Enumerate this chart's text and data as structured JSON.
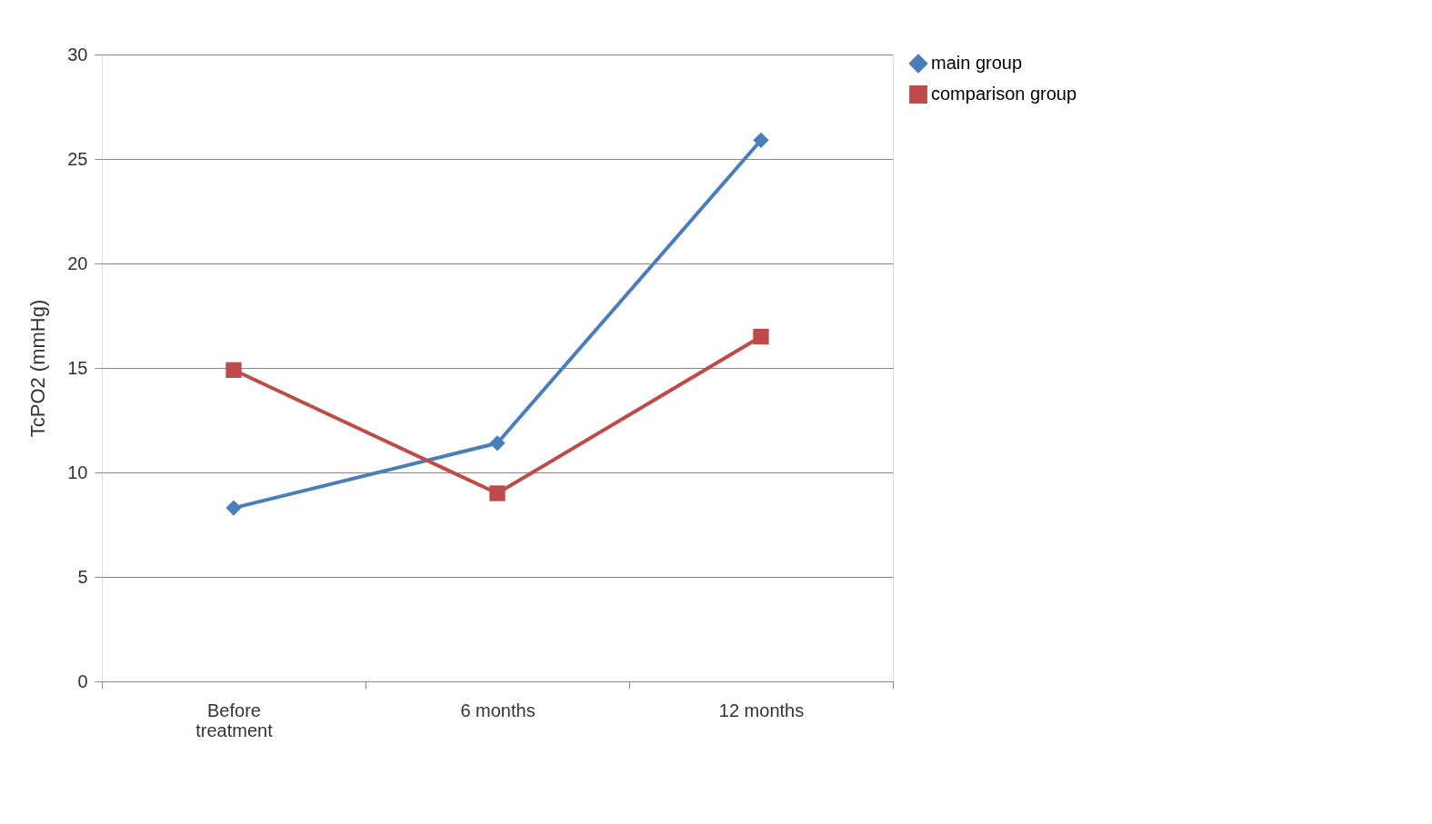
{
  "chart_data": {
    "type": "line",
    "ylabel": "TcPO2 (mmHg)",
    "categories": [
      "Before treatment",
      "6 months",
      "12 months"
    ],
    "series": [
      {
        "name": "main group",
        "color": "#4a7ebb",
        "marker": "diamond",
        "values": [
          8.3,
          11.4,
          25.9
        ]
      },
      {
        "name": "comparison group",
        "color": "#be4b48",
        "marker": "square",
        "values": [
          14.9,
          9.0,
          16.5
        ]
      }
    ],
    "ylim": [
      0,
      30
    ],
    "yticks": [
      0,
      5,
      10,
      15,
      20,
      25,
      30
    ],
    "grid": "y",
    "legend": "right",
    "line_style": "solid"
  }
}
